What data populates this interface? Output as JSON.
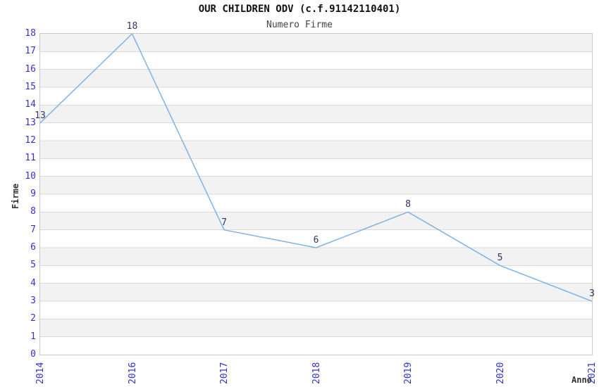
{
  "chart_data": {
    "type": "line",
    "title": "OUR CHILDREN ODV (c.f.91142110401)",
    "subtitle": "Numero Firme",
    "xlabel": "Anno",
    "ylabel": "Firme",
    "categories": [
      "2014",
      "2016",
      "2017",
      "2018",
      "2019",
      "2020",
      "2021"
    ],
    "series": [
      {
        "name": "Numero Firme",
        "values": [
          13,
          18,
          7,
          6,
          8,
          5,
          3
        ]
      }
    ],
    "data_labels": [
      "13",
      "18",
      "7",
      "6",
      "8",
      "5",
      "3"
    ],
    "ylim": [
      0,
      18
    ],
    "yticks": [
      0,
      1,
      2,
      3,
      4,
      5,
      6,
      7,
      8,
      9,
      10,
      11,
      12,
      13,
      14,
      15,
      16,
      17,
      18
    ],
    "grid": "horizontal-bands",
    "legend": "none",
    "markers": "none",
    "colors": {
      "line": "#7fb2e5",
      "tick_label": "#3333cc",
      "data_label": "#333366",
      "band": "#f2f2f2",
      "gridline": "#dadada",
      "plot_border": "#c9c9c9",
      "title": "#111111",
      "subtitle": "#444444",
      "axis_label": "#333333"
    }
  }
}
